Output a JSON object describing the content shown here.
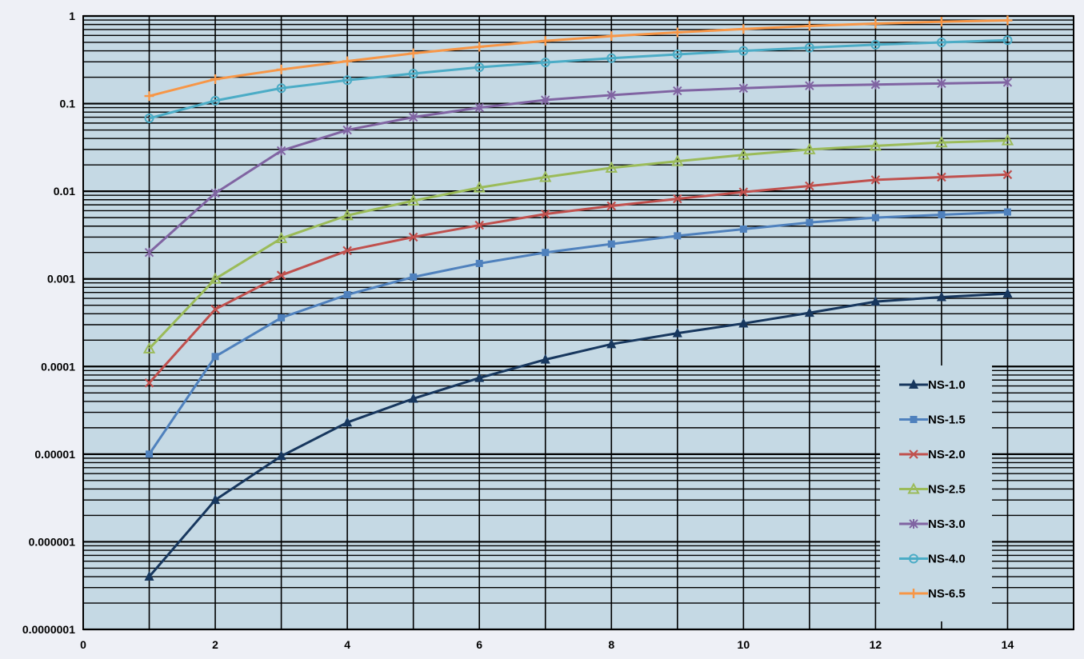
{
  "chart_data": {
    "type": "line",
    "title": "",
    "xlabel": "",
    "ylabel": "",
    "x_scale": "linear",
    "y_scale": "log",
    "xlim": [
      0,
      15
    ],
    "ylim": [
      1e-07,
      1
    ],
    "x_ticks": [
      0,
      2,
      4,
      6,
      8,
      10,
      12,
      14
    ],
    "x_tick_labels": [
      "0",
      "2",
      "4",
      "6",
      "8",
      "10",
      "12",
      "14"
    ],
    "y_ticks": [
      1e-07,
      1e-06,
      1e-05,
      0.0001,
      0.001,
      0.01,
      0.1,
      1
    ],
    "y_tick_labels": [
      "0.0000001",
      "0.000001",
      "0.00001",
      "0.0001",
      "0.001",
      "0.01",
      "0.1",
      "1"
    ],
    "grid": true,
    "legend_position": "bottom-right",
    "colors": {
      "plot_background": "#c5d9e4",
      "page_background": "#eef0f6",
      "grid": "#000000"
    },
    "x": [
      1,
      2,
      3,
      4,
      5,
      6,
      7,
      8,
      9,
      10,
      11,
      12,
      13,
      14
    ],
    "series": [
      {
        "name": "NS-1.0",
        "color": "#17375e",
        "marker": "triangle",
        "values": [
          4e-07,
          3e-06,
          9.5e-06,
          2.3e-05,
          4.3e-05,
          7.4e-05,
          0.00012,
          0.00018,
          0.00024,
          0.00031,
          0.00041,
          0.00055,
          0.00062,
          0.00068
        ]
      },
      {
        "name": "NS-1.5",
        "color": "#4f81bd",
        "marker": "square",
        "values": [
          1e-05,
          0.00013,
          0.00036,
          0.00066,
          0.00105,
          0.0015,
          0.002,
          0.0025,
          0.0031,
          0.0037,
          0.0044,
          0.005,
          0.0054,
          0.0058
        ]
      },
      {
        "name": "NS-2.0",
        "color": "#c0504d",
        "marker": "x",
        "values": [
          6.5e-05,
          0.00045,
          0.0011,
          0.0021,
          0.003,
          0.0041,
          0.0055,
          0.0068,
          0.0082,
          0.0098,
          0.0115,
          0.0135,
          0.0145,
          0.0155
        ]
      },
      {
        "name": "NS-2.5",
        "color": "#9bbb59",
        "marker": "triangle-open",
        "values": [
          0.00016,
          0.001,
          0.0029,
          0.0053,
          0.0078,
          0.011,
          0.0145,
          0.0185,
          0.022,
          0.026,
          0.03,
          0.033,
          0.036,
          0.038
        ]
      },
      {
        "name": "NS-3.0",
        "color": "#8064a2",
        "marker": "star",
        "values": [
          0.002,
          0.0095,
          0.029,
          0.05,
          0.07,
          0.09,
          0.11,
          0.125,
          0.14,
          0.15,
          0.16,
          0.165,
          0.17,
          0.175
        ]
      },
      {
        "name": "NS-4.0",
        "color": "#4bacc6",
        "marker": "circle-open",
        "values": [
          0.068,
          0.108,
          0.15,
          0.185,
          0.22,
          0.26,
          0.295,
          0.33,
          0.365,
          0.4,
          0.435,
          0.47,
          0.5,
          0.53
        ]
      },
      {
        "name": "NS-6.5",
        "color": "#f79646",
        "marker": "plus",
        "values": [
          0.122,
          0.19,
          0.245,
          0.305,
          0.375,
          0.445,
          0.52,
          0.59,
          0.65,
          0.71,
          0.77,
          0.82,
          0.86,
          0.89
        ]
      }
    ]
  }
}
